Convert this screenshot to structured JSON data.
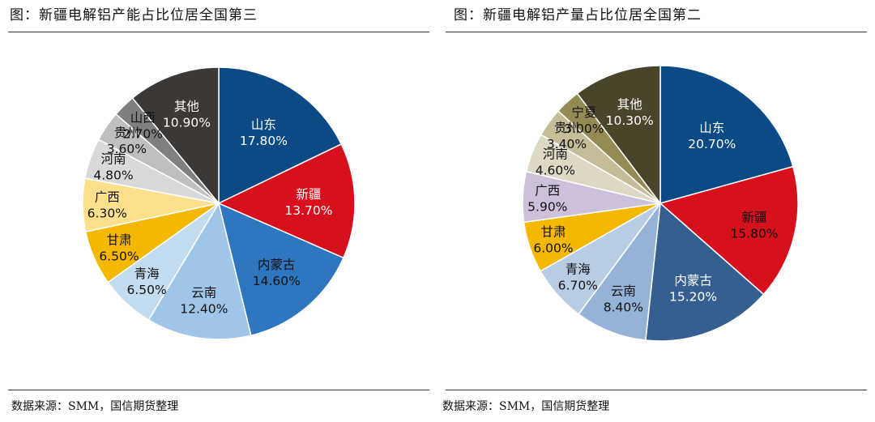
{
  "panels": [
    {
      "title": "图：新疆电解铝产能占比位居全国第三",
      "source": "数据来源：SMM，国信期货整理",
      "chart_data": {
        "type": "pie",
        "title": "图：新疆电解铝产能占比位居全国第三",
        "slices": [
          {
            "label": "山东",
            "value": 17.8,
            "value_text": "17.80%",
            "color": "#0b4a85",
            "text_color": "#ffffff"
          },
          {
            "label": "新疆",
            "value": 13.7,
            "value_text": "13.70%",
            "color": "#d7101d",
            "text_color": "#ffffff"
          },
          {
            "label": "内蒙古",
            "value": 14.6,
            "value_text": "14.60%",
            "color": "#2e76bf",
            "text_color": "#111111"
          },
          {
            "label": "云南",
            "value": 12.4,
            "value_text": "12.40%",
            "color": "#9fc5e8",
            "text_color": "#111111"
          },
          {
            "label": "青海",
            "value": 6.5,
            "value_text": "6.50%",
            "color": "#c4dcf0",
            "text_color": "#111111"
          },
          {
            "label": "甘肃",
            "value": 6.5,
            "value_text": "6.50%",
            "color": "#f5b800",
            "text_color": "#111111"
          },
          {
            "label": "广西",
            "value": 6.3,
            "value_text": "6.30%",
            "color": "#fde08b",
            "text_color": "#111111"
          },
          {
            "label": "河南",
            "value": 4.8,
            "value_text": "4.80%",
            "color": "#d9d9d9",
            "text_color": "#111111"
          },
          {
            "label": "贵州",
            "value": 3.6,
            "value_text": "3.60%",
            "color": "#bfbfbf",
            "text_color": "#111111"
          },
          {
            "label": "山西",
            "value": 2.7,
            "value_text": "2.70%",
            "color": "#7f7f7f",
            "text_color": "#111111"
          },
          {
            "label": "其他",
            "value": 10.9,
            "value_text": "10.90%",
            "color": "#3b3835",
            "text_color": "#ffffff"
          }
        ]
      }
    },
    {
      "title": "图：新疆电解铝产量占比位居全国第二",
      "source": "数据来源：SMM，国信期货整理",
      "chart_data": {
        "type": "pie",
        "title": "图：新疆电解铝产量占比位居全国第二",
        "slices": [
          {
            "label": "山东",
            "value": 20.7,
            "value_text": "20.70%",
            "color": "#0b4a85",
            "text_color": "#ffffff"
          },
          {
            "label": "新疆",
            "value": 15.8,
            "value_text": "15.80%",
            "color": "#d7101d",
            "text_color": "#111111"
          },
          {
            "label": "内蒙古",
            "value": 15.2,
            "value_text": "15.20%",
            "color": "#365f91",
            "text_color": "#ffffff"
          },
          {
            "label": "云南",
            "value": 8.4,
            "value_text": "8.40%",
            "color": "#95b3d7",
            "text_color": "#111111"
          },
          {
            "label": "青海",
            "value": 6.7,
            "value_text": "6.70%",
            "color": "#b8cce4",
            "text_color": "#111111"
          },
          {
            "label": "甘肃",
            "value": 6.0,
            "value_text": "6.00%",
            "color": "#f5b800",
            "text_color": "#111111"
          },
          {
            "label": "广西",
            "value": 5.9,
            "value_text": "5.90%",
            "color": "#ccc0da",
            "text_color": "#111111"
          },
          {
            "label": "河南",
            "value": 4.6,
            "value_text": "4.60%",
            "color": "#ddd9c4",
            "text_color": "#111111"
          },
          {
            "label": "贵州",
            "value": 3.4,
            "value_text": "3.40%",
            "color": "#c4bd97",
            "text_color": "#111111"
          },
          {
            "label": "宁夏",
            "value": 3.0,
            "value_text": "3.00%",
            "color": "#948a54",
            "text_color": "#111111"
          },
          {
            "label": "其他",
            "value": 10.3,
            "value_text": "10.30%",
            "color": "#4a452a",
            "text_color": "#ffffff"
          }
        ]
      }
    }
  ]
}
